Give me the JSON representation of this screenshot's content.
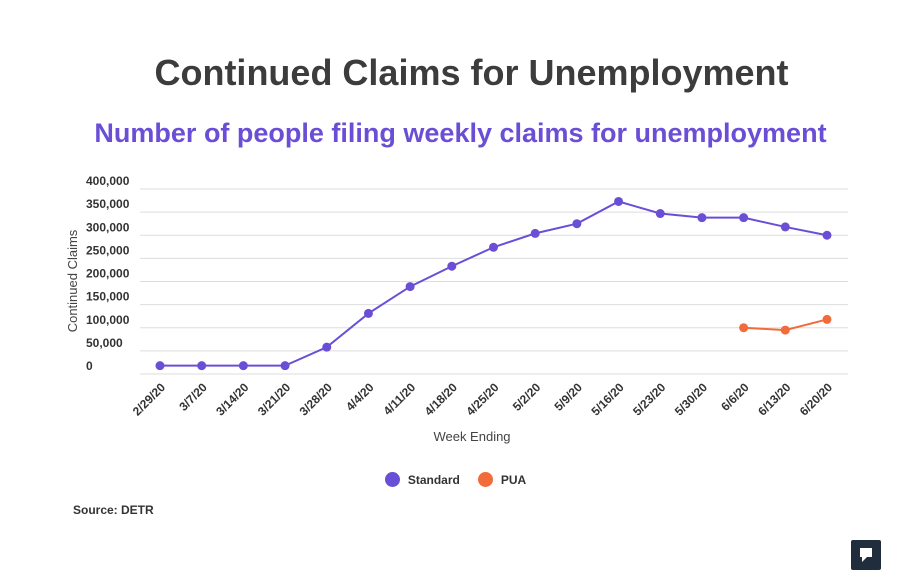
{
  "title": "Continued Claims for Unemployment",
  "subtitle": "Number of people filing weekly claims for unemployment",
  "source": "Source: DETR",
  "chart_data": {
    "type": "line",
    "title": "Continued Claims for Unemployment",
    "subtitle": "Number of people filing weekly claims for unemployment",
    "xlabel": "Week Ending",
    "ylabel": "Continued Claims",
    "ylim": [
      0,
      400000
    ],
    "yticks": [
      0,
      50000,
      100000,
      150000,
      200000,
      250000,
      300000,
      350000,
      400000
    ],
    "ytick_labels": [
      "0",
      "50,000",
      "100,000",
      "150,000",
      "200,000",
      "250,000",
      "300,000",
      "350,000",
      "400,000"
    ],
    "grid": true,
    "legend_position": "bottom-center",
    "categories": [
      "2/29/20",
      "3/7/20",
      "3/14/20",
      "3/21/20",
      "3/28/20",
      "4/4/20",
      "4/11/20",
      "4/18/20",
      "4/25/20",
      "5/2/20",
      "5/9/20",
      "5/16/20",
      "5/23/20",
      "5/30/20",
      "6/6/20",
      "6/13/20",
      "6/20/20"
    ],
    "series": [
      {
        "name": "Standard",
        "color": "#6a4fd6",
        "values": [
          18000,
          18000,
          18000,
          18000,
          58000,
          131000,
          189000,
          233000,
          274000,
          304000,
          325000,
          373000,
          347000,
          338000,
          338000,
          318000,
          300000
        ]
      },
      {
        "name": "PUA",
        "color": "#f26b3a",
        "values": [
          null,
          null,
          null,
          null,
          null,
          null,
          null,
          null,
          null,
          null,
          null,
          null,
          null,
          null,
          100000,
          95000,
          118000
        ]
      }
    ]
  }
}
